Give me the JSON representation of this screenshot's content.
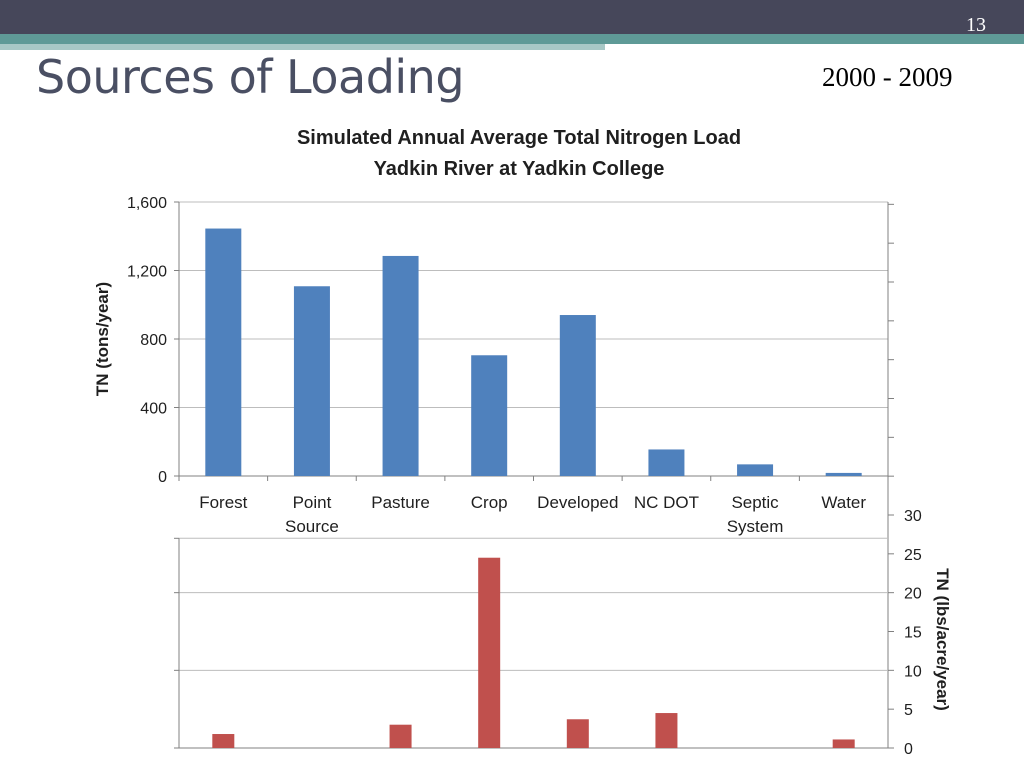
{
  "slide": {
    "title": "Sources of Loading",
    "subtitle": "2000 - 2009",
    "page_number": "13"
  },
  "colors": {
    "header_dark": "#46475a",
    "header_teal": "#5f9a97",
    "series_tons": "#4f81bd",
    "series_lbs": "#c0504d"
  },
  "chart_data": {
    "type": "bar",
    "title_lines": [
      "Simulated Annual Average Total Nitrogen Load",
      "Yadkin River at Yadkin College"
    ],
    "categories": [
      [
        "Forest"
      ],
      [
        "Point",
        "Source"
      ],
      [
        "Pasture"
      ],
      [
        "Crop"
      ],
      [
        "Developed"
      ],
      [
        "NC DOT"
      ],
      [
        "Septic",
        "System"
      ],
      [
        "Water"
      ]
    ],
    "series": [
      {
        "unit_axis": "left",
        "values": [
          1445,
          1108,
          1285,
          705,
          940,
          155,
          68,
          18
        ]
      },
      {
        "unit_axis": "right",
        "values": [
          1.8,
          null,
          3.0,
          24.5,
          3.7,
          4.5,
          null,
          1.1
        ]
      }
    ],
    "ylabel_left": "TN (tons/year)",
    "ylim_left": [
      0,
      1600
    ],
    "yticks_left": [
      "0",
      "400",
      "800",
      "1,200",
      "1,600"
    ],
    "ylabel_right": "TN (lbs/acre/year)",
    "ylim_right": [
      0,
      30
    ],
    "yticks_right": [
      "0",
      "5",
      "10",
      "15",
      "20",
      "25",
      "30"
    ],
    "grid": true
  }
}
